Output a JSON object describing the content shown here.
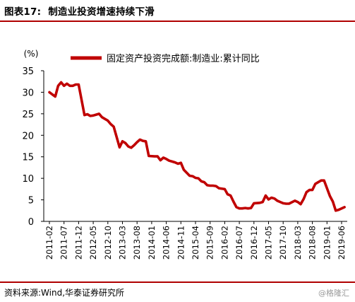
{
  "header": {
    "figure_label": "图表17:",
    "figure_title": "制造业投资增速持续下滑"
  },
  "footer": {
    "source": "资料来源:Wind,华泰证券研究所",
    "watermark": "@格隆汇"
  },
  "colors": {
    "series": "#c00000",
    "rule": "#b00000"
  },
  "chart_data": {
    "type": "line",
    "yunit": "(%)",
    "ylim": [
      0,
      35
    ],
    "yticks": [
      0,
      5,
      10,
      15,
      20,
      25,
      30,
      35
    ],
    "grid": false,
    "legend_position": "top",
    "xticks": [
      "2011-02",
      "2011-07",
      "2011-12",
      "2012-05",
      "2012-10",
      "2013-03",
      "2013-08",
      "2014-01",
      "2014-06",
      "2014-11",
      "2015-04",
      "2015-09",
      "2016-02",
      "2016-07",
      "2016-12",
      "2017-05",
      "2017-10",
      "2018-03",
      "2018-08",
      "2019-01",
      "2019-06"
    ],
    "series": [
      {
        "name": "固定资产投资完成额:制造业:累计同比",
        "color": "#c00000",
        "x": [
          "2011-02",
          "2011-03",
          "2011-04",
          "2011-05",
          "2011-06",
          "2011-07",
          "2011-08",
          "2011-09",
          "2011-10",
          "2011-11",
          "2011-12",
          "2012-02",
          "2012-03",
          "2012-04",
          "2012-05",
          "2012-06",
          "2012-07",
          "2012-08",
          "2012-09",
          "2012-10",
          "2012-11",
          "2012-12",
          "2013-02",
          "2013-03",
          "2013-04",
          "2013-05",
          "2013-06",
          "2013-07",
          "2013-08",
          "2013-09",
          "2013-10",
          "2013-11",
          "2013-12",
          "2014-02",
          "2014-03",
          "2014-04",
          "2014-05",
          "2014-06",
          "2014-07",
          "2014-08",
          "2014-09",
          "2014-10",
          "2014-11",
          "2014-12",
          "2015-02",
          "2015-03",
          "2015-04",
          "2015-05",
          "2015-06",
          "2015-07",
          "2015-08",
          "2015-09",
          "2015-10",
          "2015-11",
          "2015-12",
          "2016-02",
          "2016-03",
          "2016-04",
          "2016-05",
          "2016-06",
          "2016-07",
          "2016-08",
          "2016-09",
          "2016-10",
          "2016-11",
          "2016-12",
          "2017-02",
          "2017-03",
          "2017-04",
          "2017-05",
          "2017-06",
          "2017-07",
          "2017-08",
          "2017-09",
          "2017-10",
          "2017-11",
          "2017-12",
          "2018-02",
          "2018-03",
          "2018-04",
          "2018-05",
          "2018-06",
          "2018-07",
          "2018-08",
          "2018-09",
          "2018-10",
          "2018-11",
          "2018-12",
          "2019-02",
          "2019-03",
          "2019-04",
          "2019-05",
          "2019-06",
          "2019-07"
        ],
        "values": [
          30.0,
          29.5,
          29.0,
          31.5,
          32.3,
          31.5,
          32.0,
          31.5,
          31.5,
          31.8,
          31.8,
          24.7,
          24.9,
          24.5,
          24.6,
          24.8,
          25.0,
          24.2,
          23.8,
          23.4,
          22.6,
          22.0,
          17.2,
          18.6,
          18.2,
          17.4,
          17.1,
          17.7,
          18.4,
          19.0,
          18.7,
          18.6,
          15.2,
          15.1,
          15.1,
          14.2,
          14.8,
          14.5,
          14.1,
          13.9,
          13.7,
          13.4,
          13.6,
          12.0,
          10.6,
          10.5,
          10.1,
          10.0,
          9.3,
          9.1,
          8.4,
          8.3,
          8.3,
          8.2,
          7.7,
          7.5,
          6.3,
          6.0,
          4.6,
          3.3,
          3.0,
          3.0,
          3.1,
          3.0,
          3.1,
          4.2,
          4.3,
          4.5,
          6.0,
          5.1,
          5.5,
          5.3,
          4.8,
          4.5,
          4.2,
          4.1,
          4.1,
          4.8,
          4.5,
          4.0,
          5.2,
          6.8,
          7.3,
          7.3,
          8.7,
          9.1,
          9.5,
          9.5,
          5.9,
          4.6,
          2.5,
          2.7,
          3.0,
          3.3
        ]
      }
    ]
  }
}
